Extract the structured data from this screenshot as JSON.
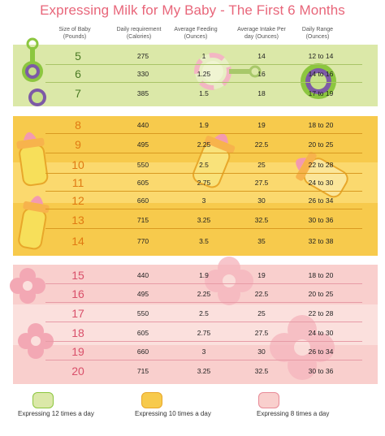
{
  "title": "Expressing Milk for My Baby - The First 6 Months",
  "headers": {
    "size": "Size of Baby (Pounds)",
    "daily_req": "Daily requirement (Calories)",
    "avg_feeding": "Average Feeding (Ounces)",
    "avg_intake": "Average Intake Per day (Ounces)",
    "daily_range": "Daily Range (Ounces)"
  },
  "rows": [
    {
      "size": "5",
      "cal": "275",
      "feed": "1",
      "intake": "14",
      "range": "12 to 14"
    },
    {
      "size": "6",
      "cal": "330",
      "feed": "1.25",
      "intake": "16",
      "range": "14 to 16"
    },
    {
      "size": "7",
      "cal": "385",
      "feed": "1.5",
      "intake": "18",
      "range": "17 to 19"
    },
    {
      "size": "8",
      "cal": "440",
      "feed": "1.9",
      "intake": "19",
      "range": "18 to 20"
    },
    {
      "size": "9",
      "cal": "495",
      "feed": "2.25",
      "intake": "22.5",
      "range": "20 to 25"
    },
    {
      "size": "10",
      "cal": "550",
      "feed": "2.5",
      "intake": "25",
      "range": "22 to 28"
    },
    {
      "size": "11",
      "cal": "605",
      "feed": "2.75",
      "intake": "27.5",
      "range": "24 to 30"
    },
    {
      "size": "12",
      "cal": "660",
      "feed": "3",
      "intake": "30",
      "range": "26 to 34"
    },
    {
      "size": "13",
      "cal": "715",
      "feed": "3.25",
      "intake": "32.5",
      "range": "30 to 36"
    },
    {
      "size": "14",
      "cal": "770",
      "feed": "3.5",
      "intake": "35",
      "range": "32 to 38"
    },
    {
      "size": "15",
      "cal": "440",
      "feed": "1.9",
      "intake": "19",
      "range": "18 to 20"
    },
    {
      "size": "16",
      "cal": "495",
      "feed": "2.25",
      "intake": "22.5",
      "range": "20 to 25"
    },
    {
      "size": "17",
      "cal": "550",
      "feed": "2.5",
      "intake": "25",
      "range": "22 to 28"
    },
    {
      "size": "18",
      "cal": "605",
      "feed": "2.75",
      "intake": "27.5",
      "range": "24 to 30"
    },
    {
      "size": "19",
      "cal": "660",
      "feed": "3",
      "intake": "30",
      "range": "26 to 34"
    },
    {
      "size": "20",
      "cal": "715",
      "feed": "3.25",
      "intake": "32.5",
      "range": "30 to 36"
    }
  ],
  "legend": [
    {
      "label": "Expressing 12 times a day",
      "icon": "rattle-icon"
    },
    {
      "label": "Expressing 10 times a day",
      "icon": "bottle-icon"
    },
    {
      "label": "Expressing 8 times a day",
      "icon": "flower-icon"
    }
  ],
  "colors": {
    "title": "#e8667a",
    "green_band": "#dbe8a8",
    "yellow_band": "#f7ca4c",
    "pink_band": "#f9cfcd",
    "green_text": "#4a7a23",
    "yellow_text": "#e07a12",
    "pink_text": "#d9506a"
  }
}
